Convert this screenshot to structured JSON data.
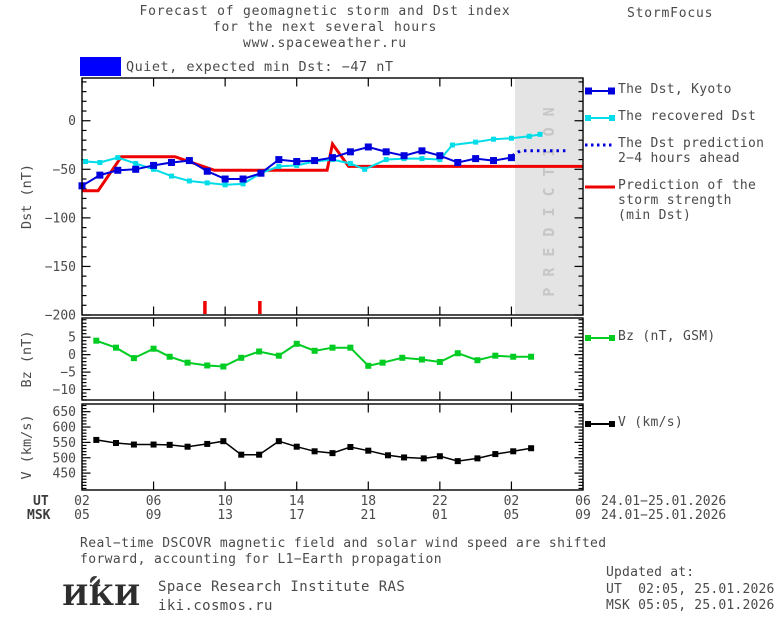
{
  "header": {
    "title_line1": "Forecast of geomagnetic storm and Dst index",
    "title_line2": "for the next several hours",
    "title_line3": "www.spaceweather.ru",
    "brand": "StormFocus"
  },
  "status": {
    "text": "Quiet, expected min Dst: −47 nT",
    "box_color": "#0000ff"
  },
  "colors": {
    "kyoto_blue": "#0000dd",
    "recovered_cyan": "#00dde8",
    "prediction_red": "#ee0000",
    "bz_green": "#00cc22",
    "v_black": "#000000",
    "band_gray": "#e4e4e4",
    "band_text_gray": "#c6c6c6"
  },
  "chart_data": [
    {
      "name": "dst",
      "type": "line",
      "ylabel": "Dst (nT)",
      "xlim": [
        2,
        30
      ],
      "ylim": [
        -200,
        44
      ],
      "yticks": [
        {
          "v": 0,
          "label": "0"
        },
        {
          "v": -50,
          "label": "−50"
        },
        {
          "v": -100,
          "label": "−100"
        },
        {
          "v": -150,
          "label": "−150"
        },
        {
          "v": -200,
          "label": "−200"
        }
      ],
      "yminor": 10,
      "xticks": [
        2,
        6,
        10,
        14,
        18,
        22,
        26,
        30
      ],
      "band": {
        "from": 26.2,
        "label": "PREDICTION"
      },
      "onset_marks": {
        "x": [
          8.87,
          11.94
        ],
        "color": "#ee0000"
      },
      "series": [
        {
          "name": "storm-strength-prediction",
          "color": "#ee0000",
          "width": 3,
          "marker": 0,
          "x": [
            2,
            2.9,
            4.2,
            7.2,
            9.4,
            15.7,
            16,
            16.9,
            30
          ],
          "y": [
            -72,
            -72,
            -37,
            -37,
            -51,
            -51,
            -24,
            -47,
            -47
          ]
        },
        {
          "name": "recovered-dst",
          "color": "#00dde8",
          "width": 2,
          "marker": 5,
          "x": [
            2.2,
            3,
            4,
            5,
            6,
            7,
            8,
            9,
            10,
            11,
            12,
            13,
            14,
            15,
            16,
            17,
            17.8,
            19,
            20,
            21,
            22,
            22.7,
            24,
            25,
            26,
            27,
            27.6
          ],
          "y": [
            -42,
            -43,
            -38,
            -44,
            -50,
            -57,
            -62,
            -64,
            -66,
            -65,
            -54,
            -47,
            -46,
            -42,
            -40,
            -44,
            -50,
            -40,
            -39,
            -39,
            -40,
            -25,
            -22,
            -19,
            -18,
            -16,
            -14
          ]
        },
        {
          "name": "dst-kyoto",
          "color": "#0000dd",
          "width": 2,
          "marker": 7,
          "x": [
            2,
            3,
            4,
            5,
            6,
            7,
            8,
            9,
            10,
            11,
            12,
            13,
            14,
            15,
            16,
            17,
            18,
            19,
            20,
            21,
            22,
            23,
            24,
            25,
            26
          ],
          "y": [
            -67,
            -56,
            -51,
            -50,
            -46,
            -43,
            -41,
            -52,
            -60,
            -60,
            -54,
            -40,
            -42,
            -41,
            -38,
            -32,
            -27,
            -32,
            -36,
            -31,
            -36,
            -43,
            -39,
            -41,
            -38
          ]
        },
        {
          "name": "dst-prediction-dotted",
          "color": "#0000dd",
          "width": 3,
          "marker": 0,
          "dash": "2.5 4",
          "x": [
            26.05,
            26.5,
            29.15
          ],
          "y": [
            -36,
            -31,
            -31
          ]
        }
      ]
    },
    {
      "name": "bz",
      "type": "line",
      "ylabel": "Bz (nT)",
      "xlim": [
        2,
        30
      ],
      "ylim": [
        -13,
        10.5
      ],
      "yticks": [
        {
          "v": 5,
          "label": "5"
        },
        {
          "v": 0,
          "label": "0"
        },
        {
          "v": -5,
          "label": "−5"
        },
        {
          "v": -10,
          "label": "−10"
        }
      ],
      "yminor": 1,
      "xticks": [
        2,
        6,
        10,
        14,
        18,
        22,
        26,
        30
      ],
      "series": [
        {
          "name": "bz-gsm",
          "color": "#00cc22",
          "width": 2,
          "marker": 6,
          "x": [
            2.8,
            3.9,
            4.9,
            6,
            6.9,
            7.9,
            9,
            9.9,
            10.9,
            11.9,
            13,
            14,
            15,
            16,
            17,
            18,
            18.8,
            19.9,
            21,
            22,
            23,
            24.1,
            25.1,
            26.1,
            27.1
          ],
          "y": [
            4,
            2,
            -1,
            1.7,
            -0.6,
            -2.3,
            -3.1,
            -3.4,
            -0.9,
            0.9,
            -0.3,
            3.1,
            1.1,
            2,
            2,
            -3.2,
            -2.3,
            -0.9,
            -1.4,
            -2.1,
            0.4,
            -1.6,
            -0.3,
            -0.6,
            -0.6
          ]
        }
      ]
    },
    {
      "name": "v",
      "type": "line",
      "ylabel": "V (km/s)",
      "xlim": [
        2,
        30
      ],
      "ylim": [
        395,
        675
      ],
      "yticks": [
        {
          "v": 650,
          "label": "650"
        },
        {
          "v": 600,
          "label": "600"
        },
        {
          "v": 550,
          "label": "550"
        },
        {
          "v": 500,
          "label": "500"
        },
        {
          "v": 450,
          "label": "450"
        }
      ],
      "yminor": 10,
      "xticks": [
        2,
        6,
        10,
        14,
        18,
        22,
        26,
        30
      ],
      "series": [
        {
          "name": "solar-wind-speed",
          "color": "#000000",
          "width": 1.5,
          "marker": 6,
          "x": [
            2.8,
            3.9,
            4.9,
            6,
            6.9,
            7.9,
            9,
            9.9,
            10.9,
            11.9,
            13,
            14,
            15,
            16,
            17,
            18,
            19.1,
            20,
            21.1,
            22,
            23,
            24.1,
            25.1,
            26.1,
            27.1
          ],
          "y": [
            558,
            548,
            543,
            543,
            542,
            536,
            545,
            554,
            510,
            510,
            554,
            536,
            521,
            515,
            535,
            523,
            508,
            501,
            498,
            505,
            489,
            498,
            512,
            521,
            531
          ]
        }
      ]
    }
  ],
  "legend": {
    "dst": [
      {
        "id": "dst-kyoto",
        "swatch": "squares",
        "marker": 7,
        "color": "#0000dd",
        "label_lines": [
          "The Dst, Kyoto"
        ]
      },
      {
        "id": "recovered-dst",
        "swatch": "squares",
        "marker": 6,
        "color": "#00dde8",
        "label_lines": [
          "The recovered Dst"
        ]
      },
      {
        "id": "dst-prediction",
        "swatch": "dots",
        "marker": 0,
        "color": "#0000dd",
        "label_lines": [
          "The Dst prediction",
          "2−4 hours ahead"
        ]
      },
      {
        "id": "storm-strength",
        "swatch": "line",
        "marker": 0,
        "color": "#ee0000",
        "label_lines": [
          "Prediction of the",
          "storm strength",
          "(min Dst)"
        ]
      }
    ],
    "bz": [
      {
        "id": "bz-gsm",
        "swatch": "squares",
        "marker": 6,
        "color": "#00cc22",
        "label_lines": [
          "Bz (nT, GSM)"
        ]
      }
    ],
    "v": [
      {
        "id": "solar-wind-speed",
        "swatch": "squares",
        "marker": 6,
        "color": "#000000",
        "label_lines": [
          "V (km/s)"
        ]
      }
    ]
  },
  "axis_footer": {
    "ut_label": "UT",
    "msk_label": "MSK",
    "ut_ticks": [
      "02",
      "06",
      "10",
      "14",
      "18",
      "22",
      "02",
      "06"
    ],
    "msk_ticks": [
      "05",
      "09",
      "13",
      "17",
      "21",
      "01",
      "05",
      "09"
    ],
    "ut_date_range": "24.01−25.01.2026",
    "msk_date_range": "24.01−25.01.2026"
  },
  "notes": {
    "line1": "Real−time DSCOVR magnetic field and solar wind speed are shifted",
    "line2": "forward, accounting for L1−Earth propagation"
  },
  "footer": {
    "logo": "ИКИ",
    "institute": "Space Research Institute RAS",
    "website": "iki.cosmos.ru",
    "updated_label": "Updated at:",
    "updated_ut": "UT  02:05, 25.01.2026",
    "updated_msk": "MSK 05:05, 25.01.2026"
  }
}
